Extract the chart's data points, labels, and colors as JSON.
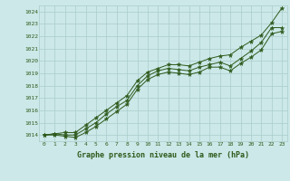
{
  "title": "Graphe pression niveau de la mer (hPa)",
  "background_color": "#cce8e8",
  "grid_color": "#aacccc",
  "line_color": "#2d5a1b",
  "xlim": [
    -0.5,
    23.5
  ],
  "ylim": [
    1013.5,
    1024.5
  ],
  "yticks": [
    1014,
    1015,
    1016,
    1017,
    1018,
    1019,
    1020,
    1021,
    1022,
    1023,
    1024
  ],
  "xticks": [
    0,
    1,
    2,
    3,
    4,
    5,
    6,
    7,
    8,
    9,
    10,
    11,
    12,
    13,
    14,
    15,
    16,
    17,
    18,
    19,
    20,
    21,
    22,
    23
  ],
  "series_upper": [
    1014.0,
    1014.1,
    1014.2,
    1014.2,
    1014.8,
    1015.4,
    1016.0,
    1016.6,
    1017.2,
    1018.4,
    1019.1,
    1019.4,
    1019.7,
    1019.7,
    1019.6,
    1019.9,
    1020.2,
    1020.4,
    1020.5,
    1021.1,
    1021.6,
    1022.1,
    1023.1,
    1024.3
  ],
  "series_main": [
    1014.0,
    1014.1,
    1014.0,
    1014.0,
    1014.5,
    1015.0,
    1015.7,
    1016.3,
    1016.8,
    1018.0,
    1018.8,
    1019.2,
    1019.4,
    1019.3,
    1019.2,
    1019.5,
    1019.7,
    1019.9,
    1019.6,
    1020.2,
    1020.8,
    1021.5,
    1022.7,
    1022.7
  ],
  "series_lower": [
    1014.0,
    1014.0,
    1013.9,
    1013.8,
    1014.2,
    1014.7,
    1015.3,
    1015.9,
    1016.5,
    1017.7,
    1018.5,
    1018.9,
    1019.1,
    1019.0,
    1018.9,
    1019.1,
    1019.5,
    1019.5,
    1019.2,
    1019.8,
    1020.3,
    1020.9,
    1022.2,
    1022.4
  ]
}
